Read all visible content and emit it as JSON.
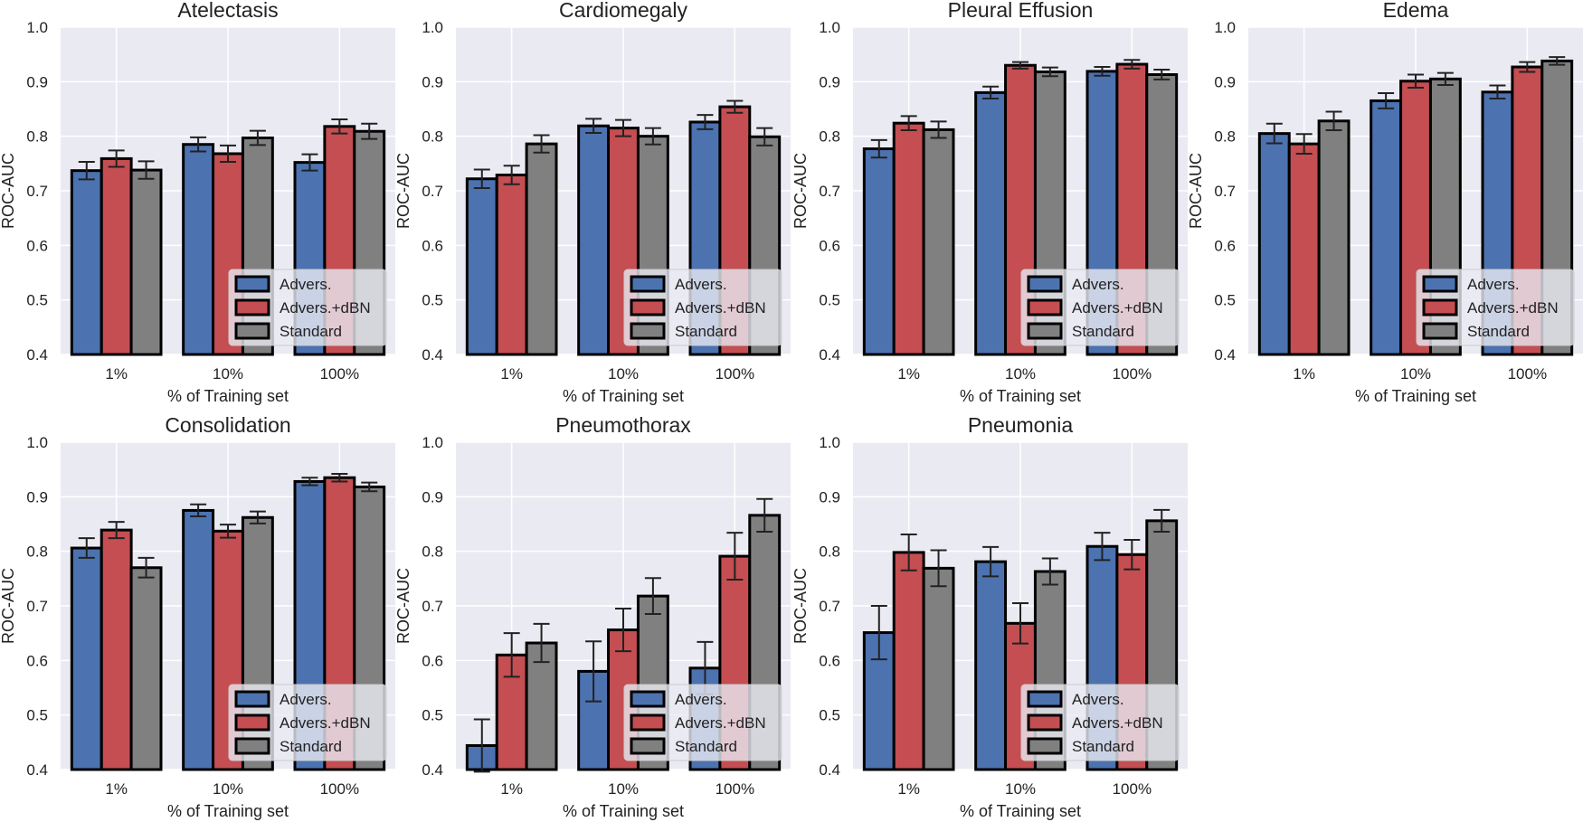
{
  "colors": {
    "background": "#eaeaf2",
    "grid": "#ffffff",
    "series": [
      "#4c72b0",
      "#c44e52",
      "#808080"
    ],
    "edge": "#000000"
  },
  "chart_data": [
    {
      "type": "bar",
      "title": "Atelectasis",
      "xlabel": "% of Training set",
      "ylabel": "ROC-AUC",
      "ylim": [
        0.4,
        1.0
      ],
      "yticks": [
        "0.4",
        "0.5",
        "0.6",
        "0.7",
        "0.8",
        "0.9",
        "1.0"
      ],
      "grid": true,
      "legend": "lower-right",
      "categories": [
        "1%",
        "10%",
        "100%"
      ],
      "series": [
        {
          "name": "Advers.",
          "values": [
            0.737,
            0.785,
            0.752
          ],
          "errors": [
            0.016,
            0.013,
            0.015
          ]
        },
        {
          "name": "Advers.+dBN",
          "values": [
            0.759,
            0.768,
            0.818
          ],
          "errors": [
            0.015,
            0.015,
            0.013
          ]
        },
        {
          "name": "Standard",
          "values": [
            0.738,
            0.797,
            0.809
          ],
          "errors": [
            0.016,
            0.013,
            0.014
          ]
        }
      ]
    },
    {
      "type": "bar",
      "title": "Cardiomegaly",
      "xlabel": "% of Training set",
      "ylabel": "ROC-AUC",
      "ylim": [
        0.4,
        1.0
      ],
      "yticks": [
        "0.4",
        "0.5",
        "0.6",
        "0.7",
        "0.8",
        "0.9",
        "1.0"
      ],
      "grid": true,
      "legend": "lower-right",
      "categories": [
        "1%",
        "10%",
        "100%"
      ],
      "series": [
        {
          "name": "Advers.",
          "values": [
            0.722,
            0.819,
            0.826
          ],
          "errors": [
            0.017,
            0.013,
            0.013
          ]
        },
        {
          "name": "Advers.+dBN",
          "values": [
            0.729,
            0.815,
            0.854
          ],
          "errors": [
            0.017,
            0.015,
            0.011
          ]
        },
        {
          "name": "Standard",
          "values": [
            0.786,
            0.8,
            0.799
          ],
          "errors": [
            0.016,
            0.015,
            0.016
          ]
        }
      ]
    },
    {
      "type": "bar",
      "title": "Pleural Effusion",
      "xlabel": "% of Training set",
      "ylabel": "ROC-AUC",
      "ylim": [
        0.4,
        1.0
      ],
      "yticks": [
        "0.4",
        "0.5",
        "0.6",
        "0.7",
        "0.8",
        "0.9",
        "1.0"
      ],
      "grid": true,
      "legend": "lower-right",
      "categories": [
        "1%",
        "10%",
        "100%"
      ],
      "series": [
        {
          "name": "Advers.",
          "values": [
            0.777,
            0.88,
            0.919
          ],
          "errors": [
            0.016,
            0.011,
            0.008
          ]
        },
        {
          "name": "Advers.+dBN",
          "values": [
            0.824,
            0.93,
            0.932
          ],
          "errors": [
            0.013,
            0.006,
            0.008
          ]
        },
        {
          "name": "Standard",
          "values": [
            0.812,
            0.918,
            0.913
          ],
          "errors": [
            0.015,
            0.008,
            0.009
          ]
        }
      ]
    },
    {
      "type": "bar",
      "title": "Edema",
      "xlabel": "% of Training set",
      "ylabel": "ROC-AUC",
      "ylim": [
        0.4,
        1.0
      ],
      "yticks": [
        "0.4",
        "0.5",
        "0.6",
        "0.7",
        "0.8",
        "0.9",
        "1.0"
      ],
      "grid": true,
      "legend": "lower-right",
      "categories": [
        "1%",
        "10%",
        "100%"
      ],
      "series": [
        {
          "name": "Advers.",
          "values": [
            0.805,
            0.865,
            0.881
          ],
          "errors": [
            0.018,
            0.014,
            0.012
          ]
        },
        {
          "name": "Advers.+dBN",
          "values": [
            0.786,
            0.901,
            0.927
          ],
          "errors": [
            0.018,
            0.012,
            0.009
          ]
        },
        {
          "name": "Standard",
          "values": [
            0.828,
            0.905,
            0.938
          ],
          "errors": [
            0.017,
            0.011,
            0.007
          ]
        }
      ]
    },
    {
      "type": "bar",
      "title": "Consolidation",
      "xlabel": "% of Training set",
      "ylabel": "ROC-AUC",
      "ylim": [
        0.4,
        1.0
      ],
      "yticks": [
        "0.4",
        "0.5",
        "0.6",
        "0.7",
        "0.8",
        "0.9",
        "1.0"
      ],
      "grid": true,
      "legend": "lower-right",
      "categories": [
        "1%",
        "10%",
        "100%"
      ],
      "series": [
        {
          "name": "Advers.",
          "values": [
            0.806,
            0.875,
            0.928
          ],
          "errors": [
            0.018,
            0.011,
            0.007
          ]
        },
        {
          "name": "Advers.+dBN",
          "values": [
            0.839,
            0.837,
            0.935
          ],
          "errors": [
            0.015,
            0.012,
            0.007
          ]
        },
        {
          "name": "Standard",
          "values": [
            0.77,
            0.862,
            0.918
          ],
          "errors": [
            0.018,
            0.011,
            0.008
          ]
        }
      ]
    },
    {
      "type": "bar",
      "title": "Pneumothorax",
      "xlabel": "% of Training set",
      "ylabel": "ROC-AUC",
      "ylim": [
        0.4,
        1.0
      ],
      "yticks": [
        "0.4",
        "0.5",
        "0.6",
        "0.7",
        "0.8",
        "0.9",
        "1.0"
      ],
      "grid": true,
      "legend": "lower-right",
      "categories": [
        "1%",
        "10%",
        "100%"
      ],
      "series": [
        {
          "name": "Advers.",
          "values": [
            0.444,
            0.58,
            0.586
          ],
          "errors": [
            0.048,
            0.055,
            0.048
          ]
        },
        {
          "name": "Advers.+dBN",
          "values": [
            0.61,
            0.656,
            0.791
          ],
          "errors": [
            0.04,
            0.039,
            0.043
          ]
        },
        {
          "name": "Standard",
          "values": [
            0.632,
            0.718,
            0.866
          ],
          "errors": [
            0.035,
            0.033,
            0.03
          ]
        }
      ]
    },
    {
      "type": "bar",
      "title": "Pneumonia",
      "xlabel": "% of Training set",
      "ylabel": "ROC-AUC",
      "ylim": [
        0.4,
        1.0
      ],
      "yticks": [
        "0.4",
        "0.5",
        "0.6",
        "0.7",
        "0.8",
        "0.9",
        "1.0"
      ],
      "grid": true,
      "legend": "lower-right",
      "categories": [
        "1%",
        "10%",
        "100%"
      ],
      "series": [
        {
          "name": "Advers.",
          "values": [
            0.651,
            0.781,
            0.809
          ],
          "errors": [
            0.049,
            0.027,
            0.025
          ]
        },
        {
          "name": "Advers.+dBN",
          "values": [
            0.798,
            0.668,
            0.794
          ],
          "errors": [
            0.033,
            0.037,
            0.027
          ]
        },
        {
          "name": "Standard",
          "values": [
            0.769,
            0.763,
            0.856
          ],
          "errors": [
            0.033,
            0.024,
            0.02
          ]
        }
      ]
    }
  ]
}
